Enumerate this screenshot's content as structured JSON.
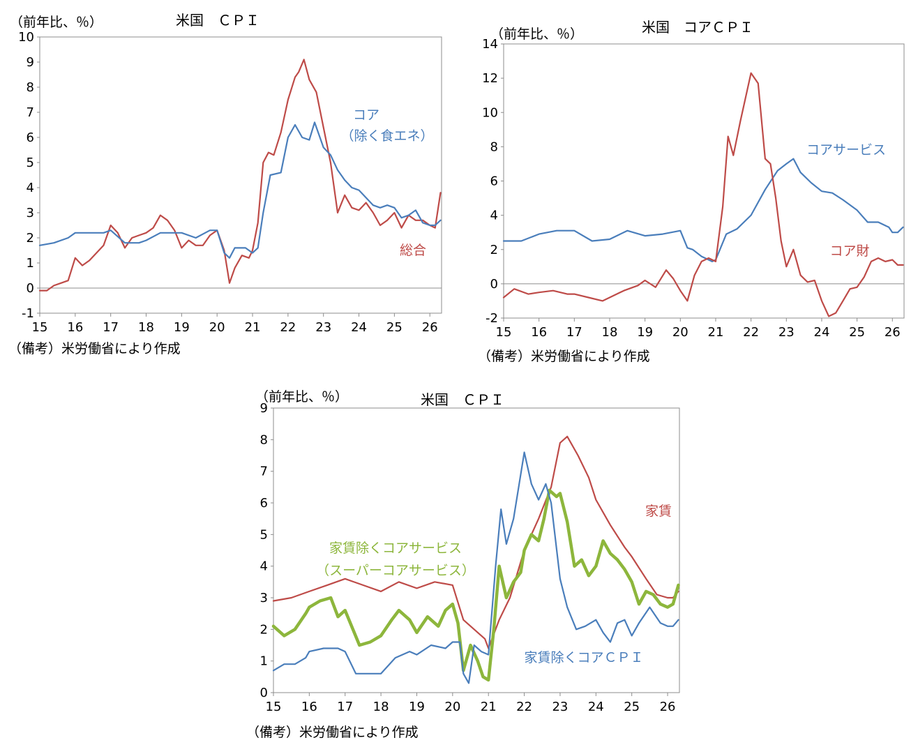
{
  "charts": [
    {
      "title": "米国　ＣＰＩ",
      "unit": "（前年比、％）",
      "note": "（備考）米労働省により作成",
      "xticks": [
        "15",
        "16",
        "17",
        "18",
        "19",
        "20",
        "21",
        "22",
        "23",
        "24",
        "25",
        "26"
      ],
      "yticks": [
        "10",
        "9",
        "8",
        "7",
        "6",
        "5",
        "4",
        "3",
        "2",
        "1",
        "0",
        "-1"
      ],
      "labels": [
        {
          "text": "コア",
          "color": "#4a7ebb"
        },
        {
          "text": "（除く食エネ）",
          "color": "#4a7ebb"
        },
        {
          "text": "総合",
          "color": "#be4b48"
        }
      ]
    },
    {
      "title": "米国　コアＣＰＩ",
      "unit": "（前年比、％）",
      "note": "（備考）米労働省により作成",
      "xticks": [
        "15",
        "16",
        "17",
        "18",
        "19",
        "20",
        "21",
        "22",
        "23",
        "24",
        "25",
        "26"
      ],
      "yticks": [
        "14",
        "12",
        "10",
        "8",
        "6",
        "4",
        "2",
        "0",
        "-2"
      ],
      "labels": [
        {
          "text": "コアサービス",
          "color": "#4a7ebb"
        },
        {
          "text": "コア財",
          "color": "#be4b48"
        }
      ]
    },
    {
      "title": "米国　ＣＰＩ",
      "unit": "（前年比、％）",
      "note": "（備考）米労働省により作成",
      "xticks": [
        "15",
        "16",
        "17",
        "18",
        "19",
        "20",
        "21",
        "22",
        "23",
        "24",
        "25",
        "26"
      ],
      "yticks": [
        "9",
        "8",
        "7",
        "6",
        "5",
        "4",
        "3",
        "2",
        "1",
        "0"
      ],
      "labels": [
        {
          "text": "家賃",
          "color": "#be4b48"
        },
        {
          "text": "家賃除くコアサービス",
          "color": "#8db63c"
        },
        {
          "text": "（スーパーコアサービス）",
          "color": "#8db63c"
        },
        {
          "text": "家賃除くコアＣＰＩ",
          "color": "#4a7ebb"
        }
      ]
    }
  ],
  "chart_data": [
    {
      "type": "line",
      "title": "米国　ＣＰＩ",
      "ylabel": "（前年比、％）",
      "ylim": [
        -1,
        10
      ],
      "xlim": [
        2015,
        2026.33
      ],
      "series": [
        {
          "name": "総合",
          "color": "#be4b48",
          "x": [
            2015,
            2015.2,
            2015.4,
            2015.6,
            2015.8,
            2016,
            2016.2,
            2016.4,
            2016.6,
            2016.8,
            2017,
            2017.2,
            2017.4,
            2017.6,
            2017.8,
            2018,
            2018.2,
            2018.4,
            2018.6,
            2018.8,
            2019,
            2019.2,
            2019.4,
            2019.6,
            2019.8,
            2020,
            2020.2,
            2020.35,
            2020.5,
            2020.7,
            2020.9,
            2021,
            2021.15,
            2021.3,
            2021.45,
            2021.6,
            2021.8,
            2022,
            2022.2,
            2022.3,
            2022.45,
            2022.6,
            2022.8,
            2023,
            2023.2,
            2023.4,
            2023.6,
            2023.8,
            2024,
            2024.2,
            2024.4,
            2024.6,
            2024.8,
            2025,
            2025.2,
            2025.4,
            2025.6,
            2025.8,
            2026,
            2026.15,
            2026.3
          ],
          "y": [
            -0.1,
            -0.1,
            0.1,
            0.2,
            0.3,
            1.2,
            0.9,
            1.1,
            1.4,
            1.7,
            2.5,
            2.2,
            1.6,
            2.0,
            2.1,
            2.2,
            2.4,
            2.9,
            2.7,
            2.3,
            1.6,
            1.9,
            1.7,
            1.7,
            2.1,
            2.3,
            1.5,
            0.2,
            0.8,
            1.3,
            1.2,
            1.5,
            2.6,
            5.0,
            5.4,
            5.3,
            6.2,
            7.5,
            8.4,
            8.6,
            9.1,
            8.3,
            7.8,
            6.4,
            5.0,
            3.0,
            3.7,
            3.2,
            3.1,
            3.4,
            3.0,
            2.5,
            2.7,
            3.0,
            2.4,
            2.9,
            2.7,
            2.7,
            2.5,
            2.4,
            3.8
          ]
        },
        {
          "name": "コア（除く食エネ）",
          "color": "#4a7ebb",
          "x": [
            2015,
            2015.4,
            2015.8,
            2016,
            2016.4,
            2016.8,
            2017,
            2017.4,
            2017.8,
            2018,
            2018.4,
            2018.8,
            2019,
            2019.4,
            2019.8,
            2020,
            2020.2,
            2020.35,
            2020.5,
            2020.8,
            2021,
            2021.15,
            2021.3,
            2021.5,
            2021.8,
            2022,
            2022.2,
            2022.4,
            2022.6,
            2022.75,
            2023,
            2023.2,
            2023.4,
            2023.6,
            2023.8,
            2024,
            2024.2,
            2024.4,
            2024.6,
            2024.8,
            2025,
            2025.2,
            2025.4,
            2025.6,
            2025.8,
            2026,
            2026.15,
            2026.3
          ],
          "y": [
            1.7,
            1.8,
            2.0,
            2.2,
            2.2,
            2.2,
            2.3,
            1.8,
            1.8,
            1.9,
            2.2,
            2.2,
            2.2,
            2.0,
            2.3,
            2.3,
            1.4,
            1.2,
            1.6,
            1.6,
            1.4,
            1.6,
            3.0,
            4.5,
            4.6,
            6.0,
            6.5,
            6.0,
            5.9,
            6.6,
            5.6,
            5.3,
            4.7,
            4.3,
            4.0,
            3.9,
            3.6,
            3.3,
            3.2,
            3.3,
            3.2,
            2.8,
            2.9,
            3.1,
            2.6,
            2.5,
            2.5,
            2.7
          ]
        }
      ]
    },
    {
      "type": "line",
      "title": "米国　コアＣＰＩ",
      "ylabel": "（前年比、％）",
      "ylim": [
        -2,
        14
      ],
      "xlim": [
        2015,
        2026.33
      ],
      "series": [
        {
          "name": "コアサービス",
          "color": "#4a7ebb",
          "x": [
            2015,
            2015.5,
            2016,
            2016.5,
            2017,
            2017.5,
            2018,
            2018.5,
            2019,
            2019.5,
            2020,
            2020.2,
            2020.35,
            2020.6,
            2020.9,
            2021,
            2021.3,
            2021.6,
            2022,
            2022.4,
            2022.75,
            2023,
            2023.2,
            2023.4,
            2023.7,
            2024,
            2024.3,
            2024.6,
            2025,
            2025.3,
            2025.6,
            2025.9,
            2026,
            2026.15,
            2026.3
          ],
          "y": [
            2.5,
            2.5,
            2.9,
            3.1,
            3.1,
            2.5,
            2.6,
            3.1,
            2.8,
            2.9,
            3.1,
            2.1,
            2.0,
            1.6,
            1.3,
            1.4,
            2.9,
            3.2,
            4.0,
            5.5,
            6.6,
            7.0,
            7.3,
            6.5,
            5.9,
            5.4,
            5.3,
            4.9,
            4.3,
            3.6,
            3.6,
            3.3,
            3.0,
            3.0,
            3.3
          ]
        },
        {
          "name": "コア財",
          "color": "#be4b48",
          "x": [
            2015,
            2015.3,
            2015.7,
            2016,
            2016.4,
            2016.8,
            2017,
            2017.4,
            2017.8,
            2018,
            2018.4,
            2018.8,
            2019,
            2019.3,
            2019.6,
            2019.8,
            2020,
            2020.2,
            2020.4,
            2020.6,
            2020.8,
            2021,
            2021.2,
            2021.35,
            2021.5,
            2021.7,
            2022,
            2022.2,
            2022.4,
            2022.55,
            2022.7,
            2022.85,
            2023,
            2023.2,
            2023.4,
            2023.6,
            2023.8,
            2024,
            2024.2,
            2024.4,
            2024.6,
            2024.8,
            2025,
            2025.2,
            2025.4,
            2025.6,
            2025.8,
            2026,
            2026.15,
            2026.3
          ],
          "y": [
            -0.8,
            -0.3,
            -0.6,
            -0.5,
            -0.4,
            -0.6,
            -0.6,
            -0.8,
            -1.0,
            -0.8,
            -0.4,
            -0.1,
            0.2,
            -0.2,
            0.8,
            0.3,
            -0.4,
            -1.0,
            0.5,
            1.3,
            1.5,
            1.3,
            4.5,
            8.6,
            7.5,
            9.5,
            12.3,
            11.7,
            7.3,
            7.0,
            5.0,
            2.5,
            1.0,
            2.0,
            0.5,
            0.1,
            0.2,
            -1.0,
            -1.9,
            -1.7,
            -1.0,
            -0.3,
            -0.2,
            0.4,
            1.3,
            1.5,
            1.3,
            1.4,
            1.1,
            1.1
          ]
        }
      ]
    },
    {
      "type": "line",
      "title": "米国　ＣＰＩ",
      "ylabel": "（前年比、％）",
      "ylim": [
        0,
        9
      ],
      "xlim": [
        2015,
        2026.33
      ],
      "series": [
        {
          "name": "家賃",
          "color": "#be4b48",
          "x": [
            2015,
            2015.5,
            2016,
            2016.5,
            2017,
            2017.5,
            2018,
            2018.5,
            2019,
            2019.5,
            2020,
            2020.3,
            2020.6,
            2020.9,
            2021,
            2021.3,
            2021.6,
            2022,
            2022.4,
            2022.75,
            2023,
            2023.2,
            2023.5,
            2023.8,
            2024,
            2024.4,
            2024.8,
            2025,
            2025.4,
            2025.7,
            2026,
            2026.15,
            2026.3
          ],
          "y": [
            2.9,
            3.0,
            3.2,
            3.4,
            3.6,
            3.4,
            3.2,
            3.5,
            3.3,
            3.5,
            3.4,
            2.3,
            2.0,
            1.7,
            1.4,
            2.3,
            3.0,
            4.5,
            5.5,
            6.5,
            7.9,
            8.1,
            7.5,
            6.8,
            6.1,
            5.3,
            4.6,
            4.3,
            3.6,
            3.1,
            3.0,
            3.0,
            3.2
          ]
        },
        {
          "name": "家賃除くコアサービス（スーパーコアサービス）",
          "color": "#8db63c",
          "x": [
            2015,
            2015.3,
            2015.6,
            2015.9,
            2016,
            2016.3,
            2016.6,
            2016.8,
            2017,
            2017.4,
            2017.7,
            2018,
            2018.3,
            2018.5,
            2018.8,
            2019,
            2019.3,
            2019.6,
            2019.8,
            2020,
            2020.15,
            2020.3,
            2020.5,
            2020.7,
            2020.85,
            2021,
            2021.15,
            2021.3,
            2021.5,
            2021.7,
            2021.9,
            2022,
            2022.2,
            2022.4,
            2022.55,
            2022.7,
            2022.9,
            2023,
            2023.2,
            2023.4,
            2023.6,
            2023.8,
            2024,
            2024.2,
            2024.4,
            2024.6,
            2024.8,
            2025,
            2025.2,
            2025.4,
            2025.6,
            2025.8,
            2026,
            2026.15,
            2026.3
          ],
          "y": [
            2.1,
            1.8,
            2.0,
            2.5,
            2.7,
            2.9,
            3.0,
            2.4,
            2.6,
            1.5,
            1.6,
            1.8,
            2.3,
            2.6,
            2.3,
            1.9,
            2.4,
            2.1,
            2.6,
            2.8,
            2.2,
            0.7,
            1.5,
            1.0,
            0.5,
            0.4,
            2.0,
            4.0,
            3.0,
            3.5,
            3.8,
            4.5,
            5.0,
            4.8,
            5.5,
            6.4,
            6.2,
            6.3,
            5.4,
            4.0,
            4.2,
            3.7,
            4.0,
            4.8,
            4.4,
            4.2,
            3.9,
            3.5,
            2.8,
            3.2,
            3.1,
            2.8,
            2.7,
            2.8,
            3.4
          ]
        },
        {
          "name": "家賃除くコアＣＰＩ",
          "color": "#4a7ebb",
          "x": [
            2015,
            2015.3,
            2015.6,
            2015.9,
            2016,
            2016.4,
            2016.8,
            2017,
            2017.3,
            2017.6,
            2018,
            2018.4,
            2018.8,
            2019,
            2019.4,
            2019.8,
            2020,
            2020.2,
            2020.3,
            2020.45,
            2020.6,
            2020.8,
            2021,
            2021.2,
            2021.35,
            2021.5,
            2021.7,
            2022,
            2022.2,
            2022.4,
            2022.6,
            2022.75,
            2023,
            2023.2,
            2023.45,
            2023.7,
            2024,
            2024.2,
            2024.4,
            2024.6,
            2024.8,
            2025,
            2025.2,
            2025.5,
            2025.8,
            2026,
            2026.15,
            2026.3
          ],
          "y": [
            0.7,
            0.9,
            0.9,
            1.1,
            1.3,
            1.4,
            1.4,
            1.3,
            0.6,
            0.6,
            0.6,
            1.1,
            1.3,
            1.2,
            1.5,
            1.4,
            1.6,
            1.6,
            0.6,
            0.3,
            1.5,
            1.3,
            1.2,
            4.0,
            5.8,
            4.7,
            5.5,
            7.6,
            6.6,
            6.1,
            6.6,
            6.0,
            3.6,
            2.7,
            2.0,
            2.1,
            2.3,
            1.9,
            1.6,
            2.2,
            2.3,
            1.8,
            2.2,
            2.7,
            2.2,
            2.1,
            2.1,
            2.3
          ]
        }
      ]
    }
  ]
}
